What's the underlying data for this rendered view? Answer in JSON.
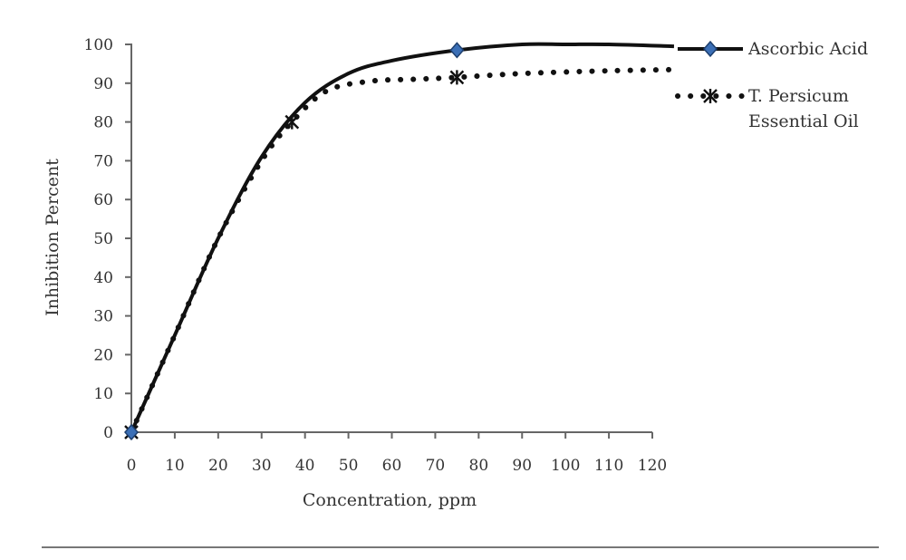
{
  "chart_data": {
    "type": "line",
    "title": "",
    "xlabel": "Concentration, ppm",
    "ylabel": "Inhibition Percent",
    "xlim": [
      0,
      120
    ],
    "ylim": [
      0,
      100
    ],
    "xticks": [
      0,
      10,
      20,
      30,
      40,
      50,
      60,
      70,
      80,
      90,
      100,
      110,
      120
    ],
    "yticks": [
      0,
      10,
      20,
      30,
      40,
      50,
      60,
      70,
      80,
      90,
      100
    ],
    "grid": false,
    "legend_position": "right",
    "series": [
      {
        "name": "Ascorbic Acid",
        "style": "solid",
        "marker": "diamond",
        "color": "#111111",
        "marker_color": "#3b6fb6",
        "points": [
          [
            0,
            0
          ],
          [
            75,
            98.5
          ],
          [
            125,
            99.5
          ]
        ],
        "curve": [
          [
            0,
            0
          ],
          [
            10,
            25
          ],
          [
            20,
            50
          ],
          [
            30,
            71
          ],
          [
            40,
            85
          ],
          [
            50,
            92.5
          ],
          [
            60,
            95.8
          ],
          [
            75,
            98.5
          ],
          [
            90,
            100
          ],
          [
            100,
            100
          ],
          [
            110,
            100
          ],
          [
            125,
            99.5
          ]
        ]
      },
      {
        "name": "T. Persicum Essential Oil",
        "style": "dotted",
        "marker": "asterisk",
        "color": "#111111",
        "marker_color": "#111111",
        "points": [
          [
            0,
            0
          ],
          [
            37,
            80
          ],
          [
            75,
            91.5
          ],
          [
            125,
            93.5
          ]
        ],
        "curve": [
          [
            0,
            0
          ],
          [
            10,
            25
          ],
          [
            20,
            50
          ],
          [
            30,
            70
          ],
          [
            37,
            80
          ],
          [
            45,
            88
          ],
          [
            55,
            90.5
          ],
          [
            65,
            91
          ],
          [
            75,
            91.5
          ],
          [
            90,
            92.5
          ],
          [
            110,
            93.2
          ],
          [
            125,
            93.5
          ]
        ]
      }
    ]
  }
}
